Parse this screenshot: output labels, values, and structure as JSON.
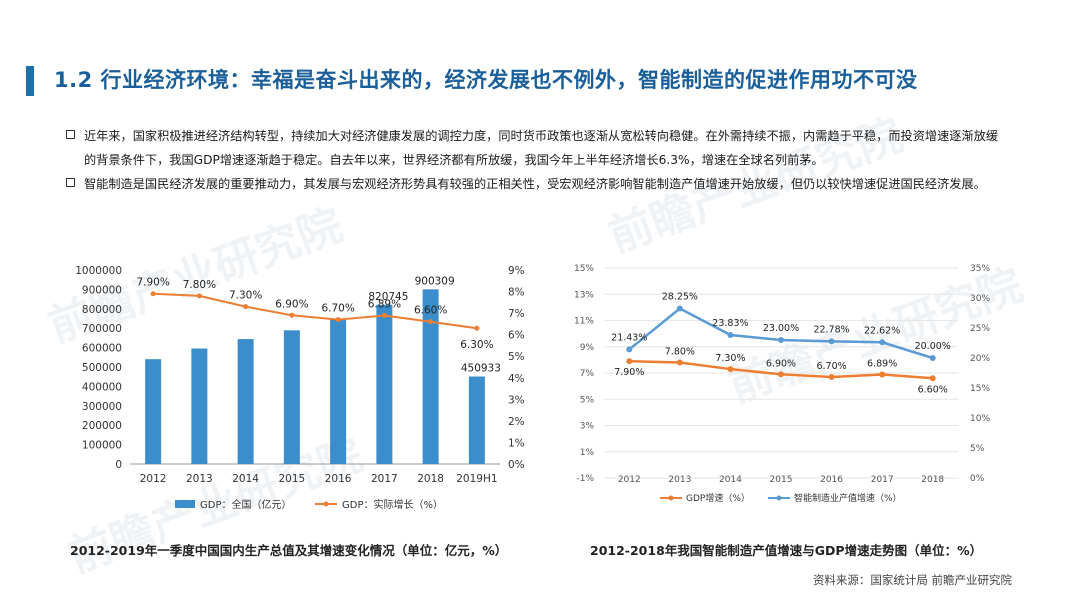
{
  "title": "1.2 行业经济环境：幸福是奋斗出来的，经济发展也不例外，智能制造的促进作用功不可没",
  "bullets": [
    "近年来，国家积极推进经济结构转型，持续加大对经济健康发展的调控力度，同时货币政策也逐渐从宽松转向稳健。在外需持续不振，内需趋于平稳，而投资增速逐渐放缓的背景条件下，我国GDP增速逐渐趋于稳定。自去年以来，世界经济都有所放缓，我国今年上半年经济增长6.3%，增速在全球名列前茅。",
    "智能制造是国民经济发展的重要推动力，其发展与宏观经济形势具有较强的正相关性，受宏观经济影响智能制造产值增速开始放缓，但仍以较快增速促进国民经济发展。"
  ],
  "colors": {
    "title": "#1a5f99",
    "bar": "#3c8dcb",
    "orange": "#ed7d31",
    "blue_line": "#5b9bd5"
  },
  "chart_data": [
    {
      "type": "bar",
      "title": "2012-2019年一季度中国国内生产总值及其增速变化情况（单位：亿元，%）",
      "categories": [
        "2012",
        "2013",
        "2014",
        "2015",
        "2016",
        "2017",
        "2018",
        "2019H1"
      ],
      "series": [
        {
          "name": "GDP：全国（亿元）",
          "kind": "bar",
          "axis": "left",
          "values": [
            540367,
            595244,
            643974,
            689052,
            744127,
            820745,
            900309,
            450933
          ],
          "labels": [
            "",
            "",
            "",
            "",
            "",
            "820745",
            "900309",
            "450933"
          ]
        },
        {
          "name": "GDP：实际增长（%）",
          "kind": "line",
          "axis": "right",
          "values": [
            7.9,
            7.8,
            7.3,
            6.9,
            6.7,
            6.89,
            6.6,
            6.3
          ],
          "labels": [
            "7.90%",
            "7.80%",
            "7.30%",
            "6.90%",
            "6.70%",
            "6.89%",
            "6.60%",
            "6.30%"
          ]
        }
      ],
      "y_left": {
        "min": 0,
        "max": 1000000,
        "step": 100000,
        "ticks": [
          "0",
          "100000",
          "200000",
          "300000",
          "400000",
          "500000",
          "600000",
          "700000",
          "800000",
          "900000",
          "1000000"
        ]
      },
      "y_right": {
        "min": 0,
        "max": 9,
        "step": 1,
        "ticks": [
          "0%",
          "1%",
          "2%",
          "3%",
          "4%",
          "5%",
          "6%",
          "7%",
          "8%",
          "9%"
        ]
      },
      "legend": [
        "GDP：全国（亿元）",
        "GDP：实际增长（%）"
      ],
      "legend_position": "bottom"
    },
    {
      "type": "line",
      "title": "2012-2018年我国智能制造产值增速与GDP增速走势图（单位：%）",
      "categories": [
        "2012",
        "2013",
        "2014",
        "2015",
        "2016",
        "2017",
        "2018"
      ],
      "series": [
        {
          "name": "GDP增速（%）",
          "axis": "left",
          "values": [
            7.9,
            7.8,
            7.3,
            6.9,
            6.7,
            6.89,
            6.6
          ],
          "labels": [
            "7.90%",
            "7.80%",
            "7.30%",
            "6.90%",
            "6.70%",
            "6.89%",
            "6.60%"
          ]
        },
        {
          "name": "智能制造业产值增速（%）",
          "axis": "right",
          "values": [
            21.43,
            28.25,
            23.83,
            23.0,
            22.78,
            22.62,
            20.0
          ],
          "labels": [
            "21.43%",
            "28.25%",
            "23.83%",
            "23.00%",
            "22.78%",
            "22.62%",
            "20.00%"
          ]
        }
      ],
      "y_left": {
        "min": -1,
        "max": 15,
        "step": 2,
        "ticks": [
          "-1%",
          "1%",
          "3%",
          "5%",
          "7%",
          "9%",
          "11%",
          "13%",
          "15%"
        ]
      },
      "y_right": {
        "min": 0,
        "max": 35,
        "step": 5,
        "ticks": [
          "0%",
          "5%",
          "10%",
          "15%",
          "20%",
          "25%",
          "30%",
          "35%"
        ]
      },
      "legend": [
        "GDP增速（%）",
        "智能制造业产值增速（%）"
      ],
      "legend_position": "bottom"
    }
  ],
  "source": "资料来源：国家统计局 前瞻产业研究院",
  "watermark": "前瞻产业研究院"
}
